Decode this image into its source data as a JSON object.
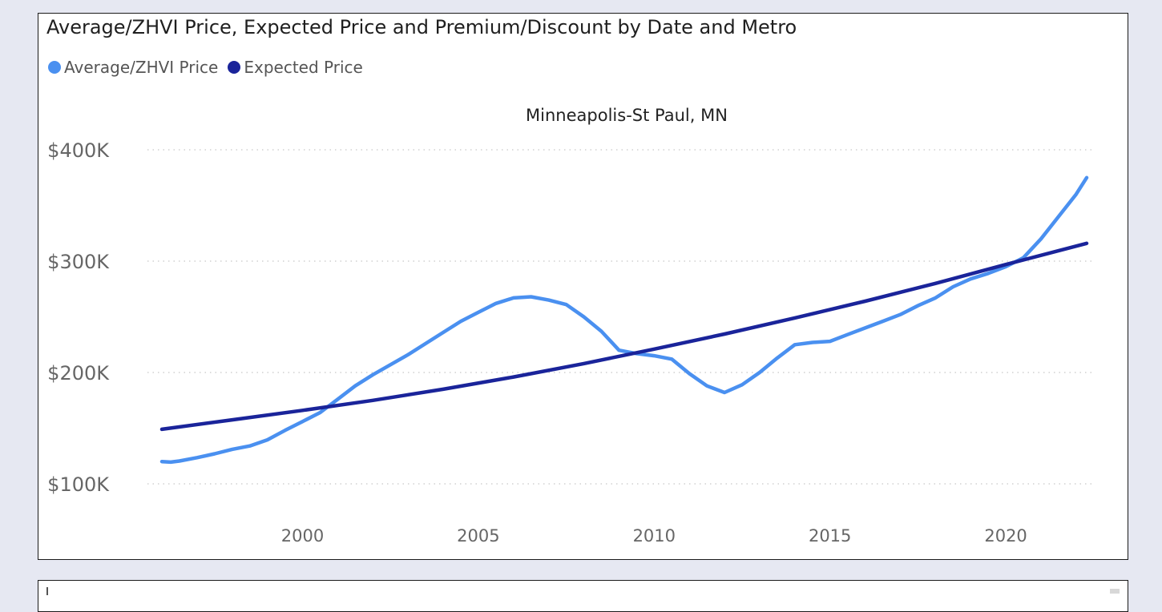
{
  "visual": {
    "title": "Average/ZHVI Price, Expected Price and Premium/Discount by Date and Metro"
  },
  "legend": [
    {
      "label": "Average/ZHVI Price",
      "color": "#4a90f0"
    },
    {
      "label": "Expected Price",
      "color": "#1a249a"
    }
  ],
  "chart_data": {
    "type": "line",
    "subtitle": "Minneapolis-St Paul, MN",
    "ylim": [
      100000,
      400000
    ],
    "xlim": [
      1996,
      2022.3
    ],
    "grid": true,
    "yticks": [
      {
        "value": 100000,
        "label": "$100K"
      },
      {
        "value": 200000,
        "label": "$200K"
      },
      {
        "value": 300000,
        "label": "$300K"
      },
      {
        "value": 400000,
        "label": "$400K"
      }
    ],
    "xticks": [
      {
        "value": 2000,
        "label": "2000"
      },
      {
        "value": 2005,
        "label": "2005"
      },
      {
        "value": 2010,
        "label": "2010"
      },
      {
        "value": 2015,
        "label": "2015"
      },
      {
        "value": 2020,
        "label": "2020"
      }
    ],
    "series": [
      {
        "name": "Average/ZHVI Price",
        "color": "#4a90f0",
        "x": [
          1996.0,
          1996.25,
          1996.5,
          1997.0,
          1997.5,
          1998.0,
          1998.5,
          1999.0,
          1999.5,
          2000.0,
          2000.5,
          2001.0,
          2001.5,
          2002.0,
          2002.5,
          2003.0,
          2003.5,
          2004.0,
          2004.5,
          2005.0,
          2005.5,
          2006.0,
          2006.5,
          2007.0,
          2007.5,
          2008.0,
          2008.5,
          2009.0,
          2009.5,
          2010.0,
          2010.5,
          2011.0,
          2011.5,
          2012.0,
          2012.5,
          2013.0,
          2013.5,
          2014.0,
          2014.5,
          2015.0,
          2015.5,
          2016.0,
          2016.5,
          2017.0,
          2017.5,
          2018.0,
          2018.5,
          2019.0,
          2019.5,
          2020.0,
          2020.5,
          2021.0,
          2021.5,
          2022.0,
          2022.3
        ],
        "y": [
          120000,
          119500,
          120500,
          123500,
          127000,
          131000,
          134000,
          139500,
          148000,
          156000,
          164000,
          176000,
          188000,
          198000,
          207000,
          216000,
          226000,
          236000,
          246000,
          254000,
          262000,
          267000,
          268000,
          265000,
          261000,
          250000,
          237000,
          220000,
          217000,
          215000,
          212000,
          199000,
          188000,
          182000,
          189000,
          200000,
          213000,
          225000,
          227000,
          228000,
          234000,
          240000,
          246000,
          252000,
          260000,
          267000,
          277000,
          284000,
          289000,
          295000,
          303000,
          320000,
          340000,
          360000,
          375000
        ]
      },
      {
        "name": "Expected Price",
        "color": "#1a249a",
        "x": [
          1996,
          1998,
          2000,
          2002,
          2004,
          2006,
          2008,
          2010,
          2012,
          2014,
          2016,
          2018,
          2020,
          2022.3
        ],
        "y": [
          149000,
          157500,
          166000,
          175000,
          185000,
          196000,
          208000,
          221000,
          234500,
          249000,
          264000,
          280000,
          297000,
          316000
        ]
      }
    ]
  }
}
